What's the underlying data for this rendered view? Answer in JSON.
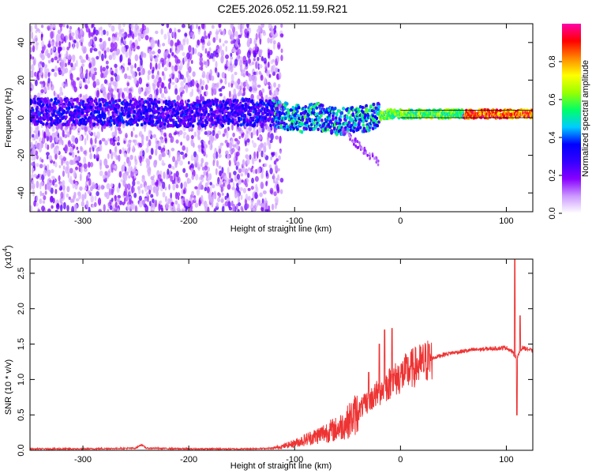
{
  "chart_data": [
    {
      "type": "heatmap",
      "title": "C2E5.2026.052.11.59.R21",
      "xlabel": "Height of straight line (km)",
      "ylabel": "Frequency (Hz)",
      "xlim": [
        -350,
        125
      ],
      "ylim": [
        -50,
        50
      ],
      "xticks": [
        -300,
        -200,
        -100,
        0,
        100
      ],
      "yticks": [
        -40,
        -20,
        0,
        20,
        40
      ],
      "colorbar": {
        "label": "Normalized spectral amplitude",
        "range": [
          0,
          1
        ],
        "ticks": [
          "0.0",
          "0.2",
          "0.4",
          "0.6",
          "0.8"
        ],
        "colors": [
          "#ffffff",
          "#cc99ff",
          "#8800ff",
          "#3300ff",
          "#0000ff",
          "#00ccff",
          "#00ff66",
          "#99ff00",
          "#ffff00",
          "#ff8800",
          "#ff0000",
          "#ff00aa"
        ]
      },
      "description_series": {
        "band_center_hz": [
          [
            -350,
            3
          ],
          [
            -300,
            3
          ],
          [
            -250,
            3
          ],
          [
            -200,
            2
          ],
          [
            -150,
            3
          ],
          [
            -120,
            2
          ],
          [
            -100,
            0
          ],
          [
            -90,
            -1
          ],
          [
            -80,
            1
          ],
          [
            -70,
            -1
          ],
          [
            -60,
            -2
          ],
          [
            -50,
            -2
          ],
          [
            -40,
            -1
          ],
          [
            -30,
            0
          ],
          [
            -20,
            1
          ],
          [
            -10,
            2
          ],
          [
            0,
            2
          ],
          [
            20,
            2
          ],
          [
            50,
            2
          ],
          [
            80,
            2
          ],
          [
            100,
            2
          ],
          [
            125,
            2
          ]
        ],
        "noise_edge_km": -120
      }
    },
    {
      "type": "line",
      "xlabel": "Height of straight line (km)",
      "ylabel": "SNR (10 * v/v)",
      "scale_label": "(x10",
      "scale_exp": "4",
      "xlim": [
        -350,
        125
      ],
      "ylim": [
        0,
        2.7
      ],
      "xticks": [
        -300,
        -200,
        -100,
        0,
        100
      ],
      "yticks": [
        "0.0",
        "0.5",
        "1.0",
        "1.5",
        "2.0",
        "2.5"
      ],
      "series": [
        {
          "name": "SNR",
          "color": "#ee3333",
          "points": [
            [
              -350,
              0.02
            ],
            [
              -300,
              0.02
            ],
            [
              -250,
              0.03
            ],
            [
              -245,
              0.08
            ],
            [
              -240,
              0.03
            ],
            [
              -200,
              0.02
            ],
            [
              -150,
              0.02
            ],
            [
              -120,
              0.03
            ],
            [
              -110,
              0.06
            ],
            [
              -100,
              0.1
            ],
            [
              -90,
              0.15
            ],
            [
              -80,
              0.2
            ],
            [
              -70,
              0.26
            ],
            [
              -60,
              0.3
            ],
            [
              -50,
              0.4
            ],
            [
              -40,
              0.55
            ],
            [
              -30,
              0.7
            ],
            [
              -20,
              0.82
            ],
            [
              -10,
              0.95
            ],
            [
              0,
              1.05
            ],
            [
              10,
              1.15
            ],
            [
              20,
              1.22
            ],
            [
              30,
              1.3
            ],
            [
              40,
              1.35
            ],
            [
              50,
              1.38
            ],
            [
              60,
              1.4
            ],
            [
              70,
              1.42
            ],
            [
              80,
              1.43
            ],
            [
              90,
              1.44
            ],
            [
              100,
              1.45
            ],
            [
              105,
              1.4
            ],
            [
              110,
              1.3
            ],
            [
              115,
              1.45
            ],
            [
              120,
              1.43
            ],
            [
              125,
              1.4
            ]
          ],
          "spikes": [
            [
              -30,
              1.1
            ],
            [
              -20,
              1.5
            ],
            [
              -15,
              1.7
            ],
            [
              -8,
              1.72
            ],
            [
              108,
              2.7
            ],
            [
              110,
              0.5
            ],
            [
              113,
              1.9
            ]
          ]
        }
      ]
    }
  ]
}
